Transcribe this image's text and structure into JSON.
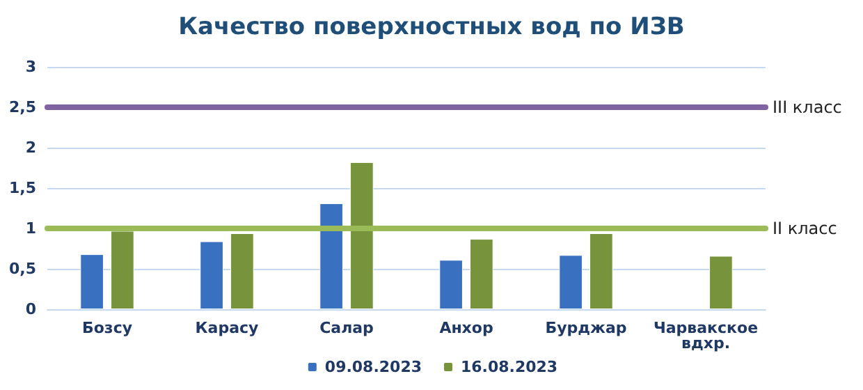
{
  "chart_data": {
    "type": "bar",
    "title": "Качество поверхностных вод по ИЗВ",
    "categories": [
      "Бозсу",
      "Карасу",
      "Салар",
      "Анхор",
      "Бурджар",
      "Чарвакское вдхр."
    ],
    "series": [
      {
        "name": "09.08.2023",
        "color": "#3a70c0",
        "values": [
          0.68,
          0.84,
          1.31,
          0.61,
          0.67,
          null
        ]
      },
      {
        "name": "16.08.2023",
        "color": "#77933c",
        "values": [
          0.97,
          0.94,
          1.82,
          0.87,
          0.94,
          0.66
        ]
      }
    ],
    "ylim": [
      0,
      3
    ],
    "yticks": [
      0,
      {
        "value": 0.5,
        "label": "0,5"
      },
      1,
      {
        "value": 1.5,
        "label": "1,5"
      },
      2,
      {
        "value": 2.5,
        "label": "2,5"
      },
      3
    ],
    "ref_lines": [
      {
        "axis": "y",
        "value": 2.5,
        "label": "III класс",
        "color": "#8064a2"
      },
      {
        "axis": "y",
        "value": 1,
        "label": "II класс",
        "color": "#9bbb59"
      }
    ],
    "grid": "y",
    "legend": "bottom"
  }
}
